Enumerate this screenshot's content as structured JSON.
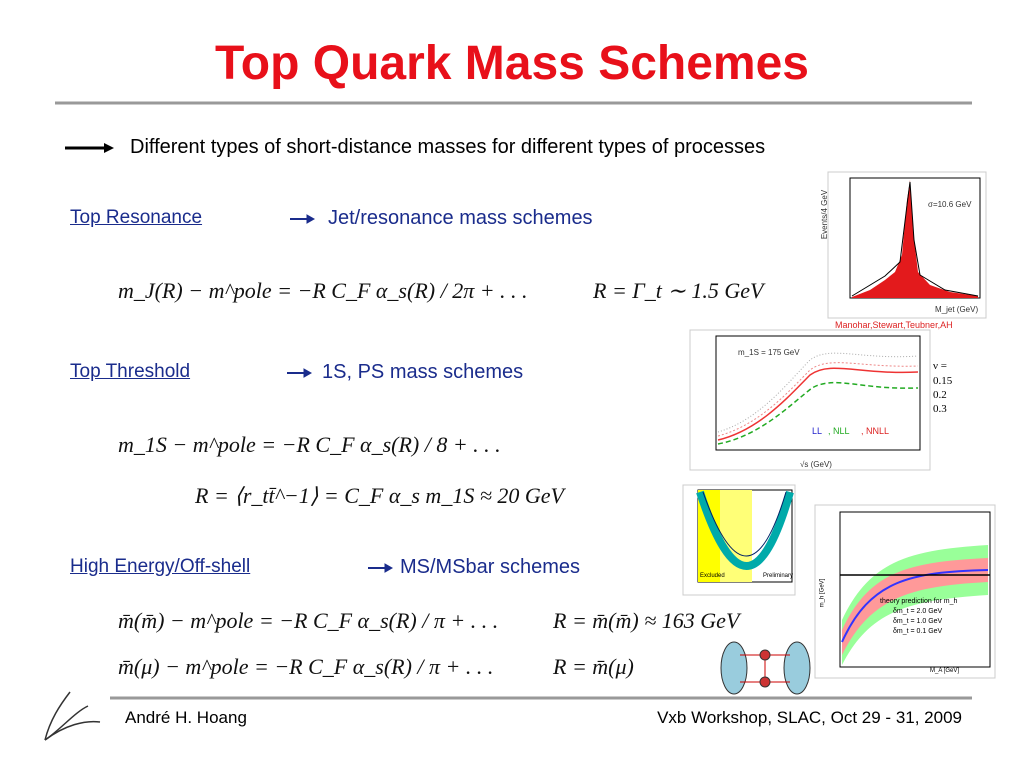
{
  "header": {
    "title": "Top Quark Mass Schemes"
  },
  "bullet": "Different types of short-distance masses for different types of processes",
  "sections": [
    {
      "link": "Top Resonance",
      "scheme": "Jet/resonance mass schemes",
      "equations": [
        "m_J(R) − m^pole = −R C_F α_s(R) / 2π + . . .",
        "R = Γ_t ∼ 1.5 GeV"
      ]
    },
    {
      "link": "Top Threshold",
      "scheme": "1S, PS mass schemes",
      "equations": [
        "m_1S − m^pole = −R C_F α_s(R) / 8 + . . .",
        "R = ⟨r_tt̄^−1⟩ = C_F α_s m_1S ≈ 20 GeV"
      ]
    },
    {
      "link": "High Energy/Off-shell",
      "scheme": "MS/MSbar schemes",
      "equations": [
        "m̄(m̄) − m^pole = −R C_F α_s(R) / π + . . .",
        "R = m̄(m̄) ≈ 163 GeV",
        "m̄(μ) − m^pole = −R C_F α_s(R) / π + . . .",
        "R = m̄(μ)"
      ]
    }
  ],
  "figures": {
    "resonance": {
      "note": "σ=10.6 GeV",
      "xlabel": "M_jet (GeV)",
      "ylabel": "Events/4 GeV",
      "caption": "Manohar,Stewart,Teubner,AH"
    },
    "threshold": {
      "label": "m_1S = 175 GeV",
      "nu": [
        "ν =",
        "0.15",
        "0.2",
        "0.3"
      ],
      "orders": [
        "LL",
        ", NLL",
        ", NNLL"
      ],
      "xlabel": "√s (GeV)"
    },
    "higgs": {
      "title": "theory prediction for m_h",
      "legend": [
        "δm_t = 2.0 GeV",
        "δm_t = 1.0 GeV",
        "δm_t = 0.1 GeV"
      ],
      "xlabel": "M_A [GeV]",
      "ylabel": "m_h [GeV]"
    },
    "fit": {
      "left": "Excluded",
      "right": "Preliminary"
    }
  },
  "footer": {
    "author": "André H. Hoang",
    "event": "Vxb Workshop, SLAC, Oct 29 - 31, 2009"
  }
}
